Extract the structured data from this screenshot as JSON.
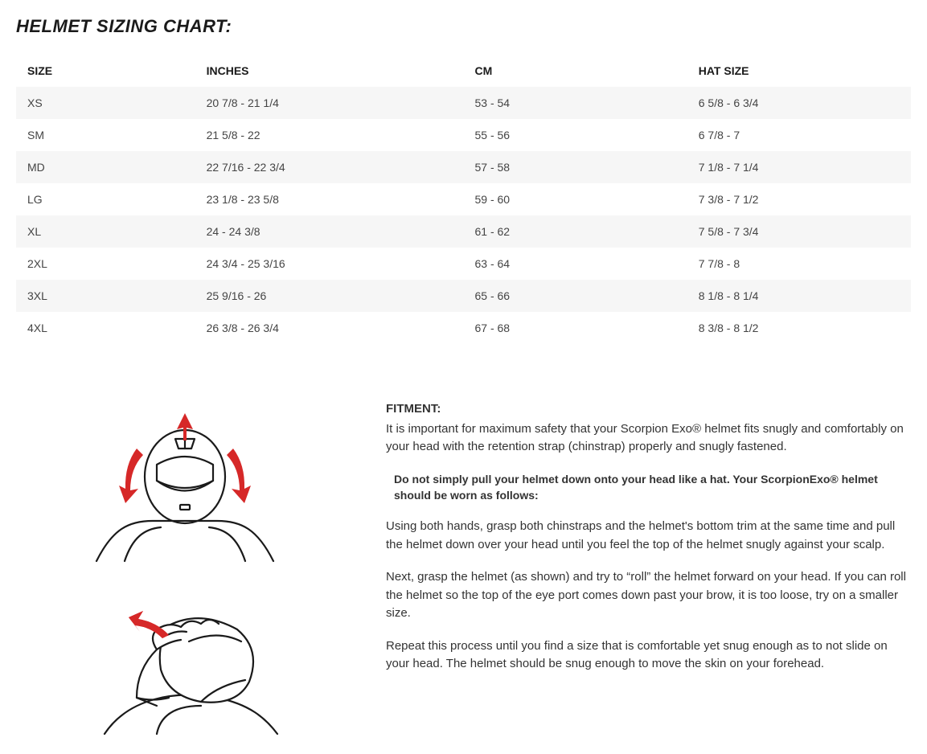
{
  "title": "HELMET SIZING CHART:",
  "table": {
    "type": "table",
    "columns": [
      "SIZE",
      "INCHES",
      "CM",
      "HAT SIZE"
    ],
    "rows": [
      [
        "XS",
        "20 7/8 - 21 1/4",
        "53 - 54",
        "6 5/8 - 6 3/4"
      ],
      [
        "SM",
        "21 5/8 - 22",
        "55 - 56",
        "6 7/8 - 7"
      ],
      [
        "MD",
        "22 7/16 - 22 3/4",
        "57 - 58",
        "7 1/8 - 7 1/4"
      ],
      [
        "LG",
        "23 1/8 - 23 5/8",
        "59 - 60",
        "7 3/8 - 7 1/2"
      ],
      [
        "XL",
        "24 - 24 3/8",
        "61 - 62",
        "7 5/8 - 7 3/4"
      ],
      [
        "2XL",
        "24 3/4 - 25 3/16",
        "63 - 64",
        "7 7/8 - 8"
      ],
      [
        "3XL",
        "25 9/16 - 26",
        "65 - 66",
        "8 1/8 - 8 1/4"
      ],
      [
        "4XL",
        "26 3/8 - 26 3/4",
        "67 - 68",
        "8 3/8 - 8 1/2"
      ]
    ],
    "header_bg": "#ffffff",
    "row_odd_bg": "#f6f6f6",
    "row_even_bg": "#ffffff",
    "text_color": "#444444",
    "header_color": "#1a1a1a",
    "font_size": 14
  },
  "fitment": {
    "label": "FITMENT:",
    "intro": "It is important for maximum safety that your Scorpion Exo® helmet fits snugly and comfortably on your head with the retention strap (chinstrap) properly and snugly fastened.",
    "callout": "Do not simply pull your helmet down onto your head like a hat. Your ScorpionExo® helmet should be worn as follows:",
    "p1": "Using both hands, grasp both chinstraps and the helmet's bottom trim at the same time and pull the helmet down over your head until you feel the top of the helmet snugly against your scalp.",
    "p2": "Next, grasp the helmet (as shown) and try to “roll” the helmet forward on your head. If you can roll the helmet so the top of the eye port comes down past your brow, it is too loose, try on a smaller size.",
    "p3": "Repeat this process until you find a size that is comfortable yet snug enough as to not slide on your head. The helmet should be snug enough to move the skin on your forehead."
  },
  "illustration": {
    "stroke": "#1a1a1a",
    "arrow_fill": "#d62828",
    "bg": "#ffffff"
  }
}
